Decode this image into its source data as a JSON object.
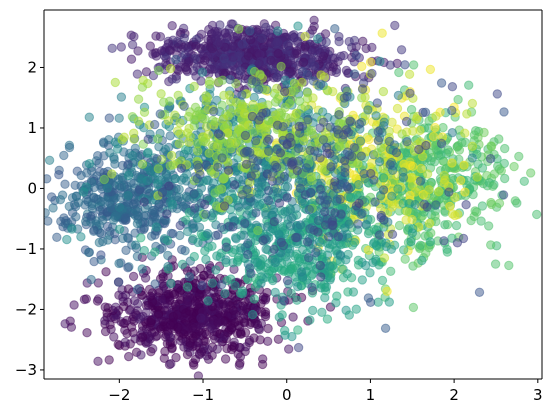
{
  "chart_data": {
    "type": "scatter",
    "title": "",
    "xlabel": "",
    "ylabel": "",
    "xlim": [
      -2.9,
      3.05
    ],
    "ylim": [
      -3.15,
      2.95
    ],
    "xticks": [
      -2,
      -1,
      0,
      1,
      2,
      3
    ],
    "yticks": [
      -3,
      -2,
      -1,
      0,
      1,
      2
    ],
    "xtick_labels": [
      "−2",
      "−1",
      "0",
      "1",
      "2",
      "3"
    ],
    "ytick_labels": [
      "−3",
      "−2",
      "−1",
      "0",
      "1",
      "2"
    ],
    "grid": false,
    "legend": "none",
    "marker_alpha": 0.5,
    "colormap": "viridis",
    "clusters": [
      {
        "label_level": 0.12,
        "center": [
          -0.4,
          2.2
        ],
        "spread": [
          0.55,
          0.22
        ],
        "n": 700
      },
      {
        "label_level": 0.02,
        "center": [
          -1.15,
          -2.1
        ],
        "spread": [
          0.5,
          0.35
        ],
        "n": 700
      },
      {
        "label_level": 0.33,
        "center": [
          -1.9,
          -0.25
        ],
        "spread": [
          0.45,
          0.45
        ],
        "n": 450
      },
      {
        "label_level": 0.72,
        "center": [
          1.7,
          0.1
        ],
        "spread": [
          0.5,
          0.6
        ],
        "n": 450
      },
      {
        "label_level": 0.95,
        "center": [
          0.95,
          0.4
        ],
        "spread": [
          0.55,
          0.7
        ],
        "n": 300
      },
      {
        "label_level": 0.58,
        "center": [
          0.1,
          -0.9
        ],
        "spread": [
          0.6,
          0.55
        ],
        "n": 500
      },
      {
        "label_level": 0.45,
        "center": [
          -0.4,
          0.4
        ],
        "spread": [
          0.8,
          0.7
        ],
        "n": 600
      },
      {
        "label_level": 0.85,
        "center": [
          -0.5,
          0.9
        ],
        "spread": [
          0.7,
          0.5
        ],
        "n": 350
      },
      {
        "label_level": 0.25,
        "center": [
          0.2,
          0.2
        ],
        "spread": [
          0.9,
          0.9
        ],
        "n": 250
      }
    ]
  }
}
